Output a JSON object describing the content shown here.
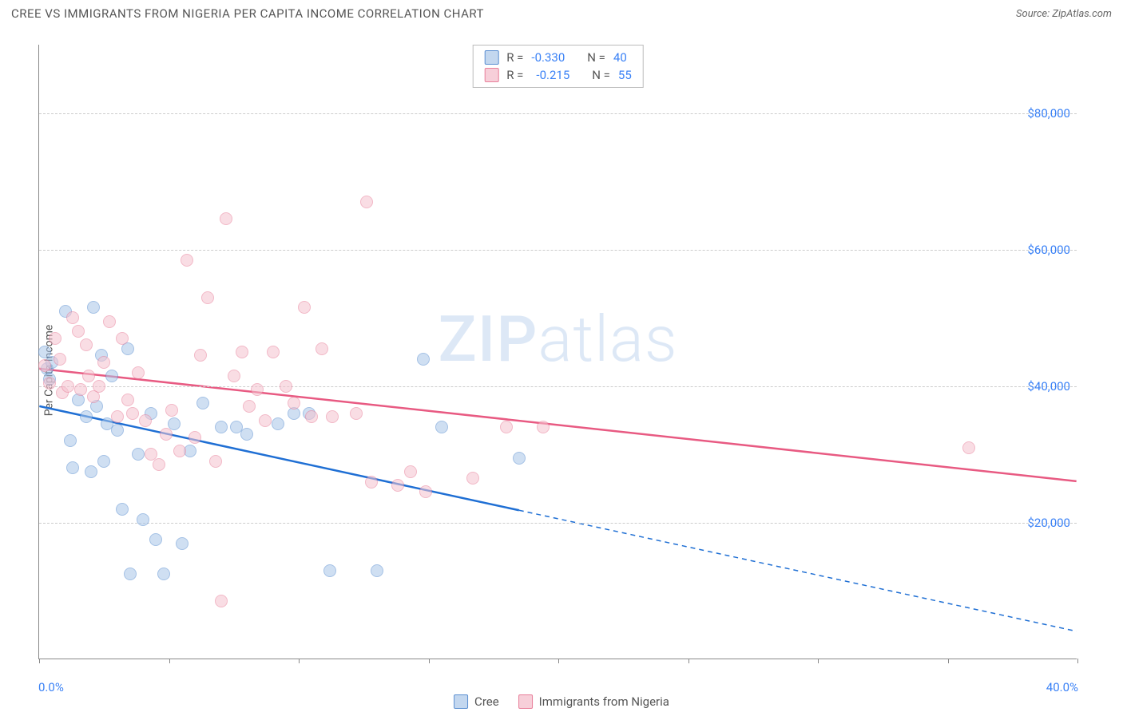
{
  "title": "CREE VS IMMIGRANTS FROM NIGERIA PER CAPITA INCOME CORRELATION CHART",
  "source": "Source: ZipAtlas.com",
  "watermark": {
    "prefix": "ZIP",
    "suffix": "atlas"
  },
  "chart": {
    "type": "scatter",
    "ylabel": "Per Capita Income",
    "xlim": [
      0,
      40
    ],
    "ylim": [
      0,
      90000
    ],
    "x_min_label": "0.0%",
    "x_max_label": "40.0%",
    "xtick_positions": [
      0,
      5,
      10,
      15,
      20,
      25,
      30,
      35,
      40
    ],
    "yticks": [
      {
        "v": 20000,
        "label": "$20,000"
      },
      {
        "v": 40000,
        "label": "$40,000"
      },
      {
        "v": 60000,
        "label": "$60,000"
      },
      {
        "v": 80000,
        "label": "$80,000"
      }
    ],
    "grid_color": "#cccccc",
    "background_color": "#ffffff",
    "series": [
      {
        "name": "Cree",
        "fill": "#a8c5e8",
        "stroke": "#5b8fd1",
        "line_color": "#1f6fd4",
        "r_label": "R =",
        "r_value": "-0.330",
        "n_label": "N =",
        "n_value": "40",
        "trend": {
          "y_at_x0": 37000,
          "y_at_x40": 4000,
          "solid_until_x": 18.5
        },
        "points": [
          [
            0.2,
            45000
          ],
          [
            0.3,
            42500
          ],
          [
            0.4,
            41000
          ],
          [
            0.5,
            43500
          ],
          [
            1.0,
            51000
          ],
          [
            1.2,
            32000
          ],
          [
            1.3,
            28000
          ],
          [
            1.5,
            38000
          ],
          [
            1.8,
            35500
          ],
          [
            2.0,
            27500
          ],
          [
            2.1,
            51500
          ],
          [
            2.2,
            37000
          ],
          [
            2.4,
            44500
          ],
          [
            2.5,
            29000
          ],
          [
            2.6,
            34500
          ],
          [
            2.8,
            41500
          ],
          [
            3.0,
            33500
          ],
          [
            3.2,
            22000
          ],
          [
            3.4,
            45500
          ],
          [
            3.5,
            12500
          ],
          [
            3.8,
            30000
          ],
          [
            4.0,
            20500
          ],
          [
            4.3,
            36000
          ],
          [
            4.5,
            17500
          ],
          [
            4.8,
            12500
          ],
          [
            5.2,
            34500
          ],
          [
            5.5,
            17000
          ],
          [
            5.8,
            30500
          ],
          [
            6.3,
            37500
          ],
          [
            7.0,
            34000
          ],
          [
            7.6,
            34000
          ],
          [
            8.0,
            33000
          ],
          [
            9.2,
            34500
          ],
          [
            9.8,
            36000
          ],
          [
            10.4,
            36000
          ],
          [
            11.2,
            13000
          ],
          [
            13.0,
            13000
          ],
          [
            14.8,
            44000
          ],
          [
            15.5,
            34000
          ],
          [
            18.5,
            29500
          ]
        ]
      },
      {
        "name": "Immigrants from Nigeria",
        "fill": "#f5c3cf",
        "stroke": "#e87f9a",
        "line_color": "#e85a82",
        "r_label": "R =",
        "r_value": "-0.215",
        "n_label": "N =",
        "n_value": "55",
        "trend": {
          "y_at_x0": 42500,
          "y_at_x40": 26000,
          "solid_until_x": 40
        },
        "points": [
          [
            0.2,
            43000
          ],
          [
            0.4,
            40500
          ],
          [
            0.6,
            47000
          ],
          [
            0.8,
            44000
          ],
          [
            0.9,
            39000
          ],
          [
            1.1,
            40000
          ],
          [
            1.3,
            50000
          ],
          [
            1.5,
            48000
          ],
          [
            1.6,
            39500
          ],
          [
            1.8,
            46000
          ],
          [
            1.9,
            41500
          ],
          [
            2.1,
            38500
          ],
          [
            2.3,
            40000
          ],
          [
            2.5,
            43500
          ],
          [
            2.7,
            49500
          ],
          [
            3.0,
            35500
          ],
          [
            3.2,
            47000
          ],
          [
            3.4,
            38000
          ],
          [
            3.6,
            36000
          ],
          [
            3.8,
            42000
          ],
          [
            4.1,
            35000
          ],
          [
            4.3,
            30000
          ],
          [
            4.6,
            28500
          ],
          [
            4.9,
            33000
          ],
          [
            5.1,
            36500
          ],
          [
            5.4,
            30500
          ],
          [
            5.7,
            58500
          ],
          [
            6.0,
            32500
          ],
          [
            6.2,
            44500
          ],
          [
            6.5,
            53000
          ],
          [
            6.8,
            29000
          ],
          [
            7.0,
            8500
          ],
          [
            7.2,
            64500
          ],
          [
            7.5,
            41500
          ],
          [
            7.8,
            45000
          ],
          [
            8.1,
            37000
          ],
          [
            8.4,
            39500
          ],
          [
            8.7,
            35000
          ],
          [
            9.0,
            45000
          ],
          [
            9.5,
            40000
          ],
          [
            9.8,
            37500
          ],
          [
            10.2,
            51500
          ],
          [
            10.5,
            35500
          ],
          [
            10.9,
            45500
          ],
          [
            11.3,
            35500
          ],
          [
            12.2,
            36000
          ],
          [
            12.6,
            67000
          ],
          [
            12.8,
            26000
          ],
          [
            13.8,
            25500
          ],
          [
            14.3,
            27500
          ],
          [
            14.9,
            24500
          ],
          [
            16.7,
            26500
          ],
          [
            18.0,
            34000
          ],
          [
            19.4,
            34000
          ],
          [
            35.8,
            31000
          ]
        ]
      }
    ],
    "legend_bottom": [
      {
        "series": 0,
        "label": "Cree"
      },
      {
        "series": 1,
        "label": "Immigrants from Nigeria"
      }
    ]
  }
}
